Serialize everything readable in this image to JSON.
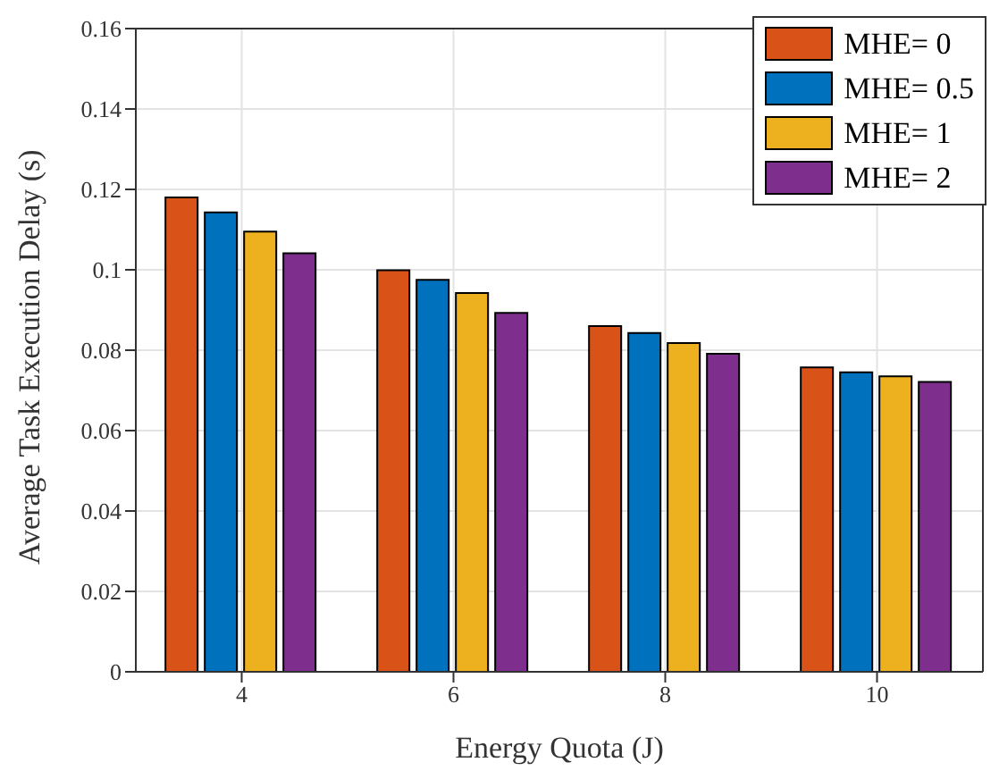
{
  "chart_data": {
    "type": "bar",
    "xlabel": "Energy Quota (J)",
    "ylabel": "Average Task Execution Delay (s)",
    "categories": [
      "4",
      "6",
      "8",
      "10"
    ],
    "series": [
      {
        "name": "MHE= 0",
        "color": "#d95319",
        "values": [
          0.118,
          0.0999,
          0.086,
          0.0757
        ]
      },
      {
        "name": "MHE= 0.5",
        "color": "#0072bd",
        "values": [
          0.1143,
          0.0975,
          0.0843,
          0.0745
        ]
      },
      {
        "name": "MHE= 1",
        "color": "#edb120",
        "values": [
          0.1095,
          0.0942,
          0.0818,
          0.0735
        ]
      },
      {
        "name": "MHE= 2",
        "color": "#7e2f8e",
        "values": [
          0.1041,
          0.0893,
          0.0791,
          0.0721
        ]
      }
    ],
    "ylim": [
      0,
      0.16
    ],
    "yticks": [
      0,
      0.02,
      0.04,
      0.06,
      0.08,
      0.1,
      0.12,
      0.14,
      0.16
    ],
    "grid": true,
    "legend": "top right"
  }
}
